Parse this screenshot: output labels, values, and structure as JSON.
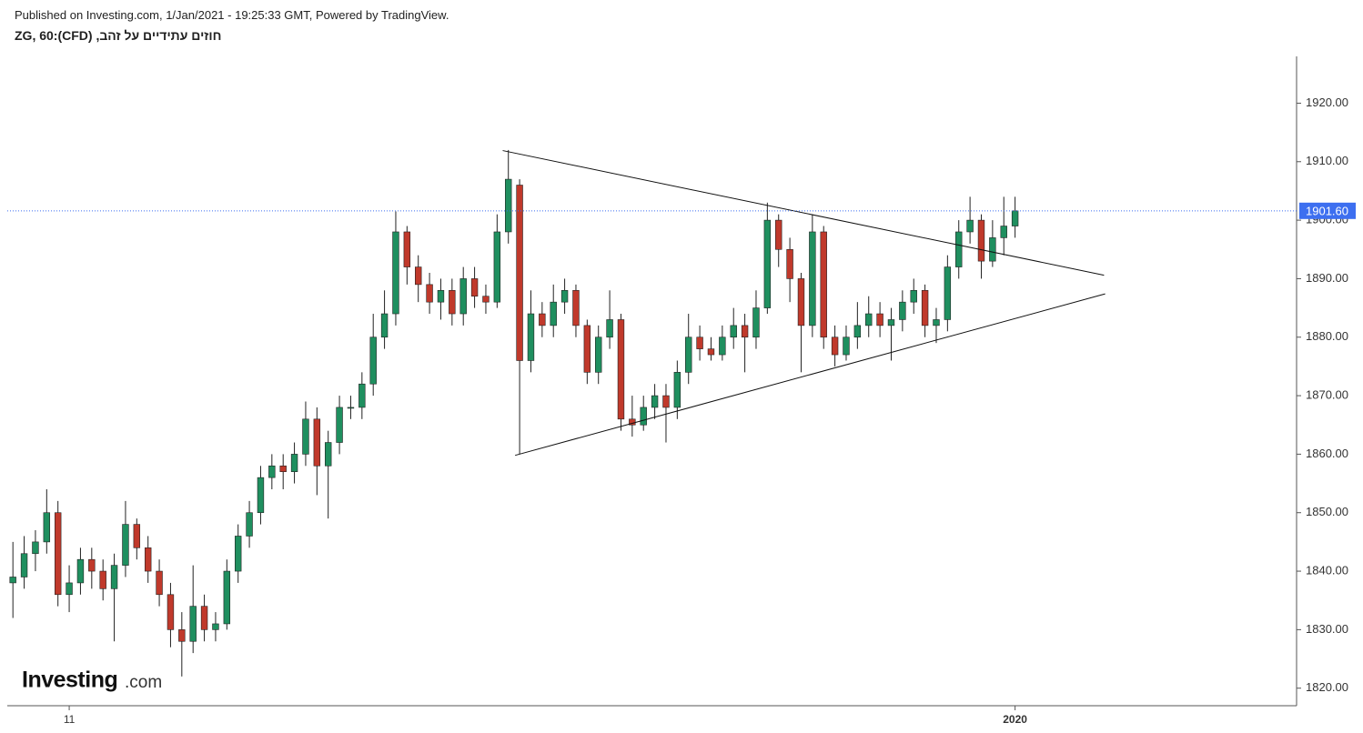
{
  "header": {
    "published": "Published on Investing.com, 1/Jan/2021 - 19:25:33 GMT, Powered by TradingView.",
    "symbol": "חוזים עתידיים על זהב, (CFD):ZG, 60"
  },
  "logo": {
    "brand": "Investing",
    "suffix": ".com"
  },
  "chart_data": {
    "type": "candlestick",
    "up_color": "#1f8f5f",
    "down_color": "#c0392b",
    "open": [
      1838,
      1839,
      1843,
      1845,
      1850,
      1836,
      1838,
      1842,
      1840,
      1837,
      1841,
      1848,
      1844,
      1840,
      1836,
      1830,
      1828,
      1834,
      1830,
      1831,
      1840,
      1846,
      1850,
      1856,
      1858,
      1857,
      1860,
      1866,
      1858,
      1862,
      1868,
      1868,
      1872,
      1880,
      1884,
      1898,
      1892,
      1889,
      1886,
      1888,
      1884,
      1890,
      1887,
      1886,
      1898,
      1906,
      1876,
      1884,
      1882,
      1886,
      1888,
      1882,
      1874,
      1880,
      1883,
      1866,
      1865,
      1868,
      1870,
      1868,
      1874,
      1880,
      1878,
      1877,
      1880,
      1882,
      1880,
      1885,
      1900,
      1895,
      1890,
      1882,
      1898,
      1880,
      1877,
      1880,
      1882,
      1884,
      1882,
      1883,
      1886,
      1888,
      1882,
      1883,
      1892,
      1898,
      1900,
      1893,
      1897,
      1899
    ],
    "high": [
      1845,
      1846,
      1847,
      1854,
      1852,
      1841,
      1844,
      1844,
      1842,
      1843,
      1852,
      1849,
      1846,
      1842,
      1838,
      1833,
      1841,
      1836,
      1833,
      1842,
      1848,
      1852,
      1858,
      1860,
      1860,
      1862,
      1869,
      1868,
      1864,
      1870,
      1870,
      1874,
      1884,
      1888,
      1901.5,
      1899,
      1894,
      1891,
      1890,
      1890,
      1892,
      1892,
      1889,
      1901,
      1912,
      1907,
      1888,
      1886,
      1889,
      1890,
      1889,
      1883,
      1882,
      1888,
      1884,
      1870,
      1870,
      1872,
      1872,
      1876,
      1884,
      1882,
      1880,
      1882,
      1885,
      1884,
      1888,
      1903,
      1901,
      1897,
      1891,
      1901,
      1899,
      1882,
      1882,
      1886,
      1887,
      1886,
      1885,
      1888,
      1890,
      1889,
      1885,
      1894,
      1900,
      1904,
      1901,
      1900,
      1904,
      1904
    ],
    "low": [
      1832,
      1837,
      1840,
      1843,
      1834,
      1833,
      1836,
      1837,
      1835,
      1828,
      1839,
      1842,
      1838,
      1834,
      1827,
      1822,
      1826,
      1828,
      1828,
      1830,
      1838,
      1844,
      1848,
      1854,
      1854,
      1855,
      1858,
      1853,
      1849,
      1860,
      1866,
      1866,
      1870,
      1878,
      1882,
      1889,
      1886,
      1884,
      1883,
      1882,
      1882,
      1885,
      1884,
      1885,
      1896,
      1860,
      1874,
      1880,
      1880,
      1884,
      1880,
      1872,
      1872,
      1878,
      1864,
      1863,
      1864,
      1866,
      1862,
      1866,
      1872,
      1876,
      1876,
      1876,
      1878,
      1874,
      1878,
      1884,
      1892,
      1886,
      1874,
      1880,
      1878,
      1875,
      1876,
      1878,
      1880,
      1880,
      1876,
      1881,
      1884,
      1880,
      1879,
      1881,
      1890,
      1896,
      1890,
      1892,
      1894,
      1897
    ],
    "close": [
      1839,
      1843,
      1845,
      1850,
      1836,
      1838,
      1842,
      1840,
      1837,
      1841,
      1848,
      1844,
      1840,
      1836,
      1830,
      1828,
      1834,
      1830,
      1831,
      1840,
      1846,
      1850,
      1856,
      1858,
      1857,
      1860,
      1866,
      1858,
      1862,
      1868,
      1868,
      1872,
      1880,
      1884,
      1898,
      1892,
      1889,
      1886,
      1888,
      1884,
      1890,
      1887,
      1886,
      1898,
      1907,
      1876,
      1884,
      1882,
      1886,
      1888,
      1882,
      1874,
      1880,
      1883,
      1866,
      1865,
      1868,
      1870,
      1868,
      1874,
      1880,
      1878,
      1877,
      1880,
      1882,
      1880,
      1885,
      1900,
      1895,
      1890,
      1882,
      1898,
      1880,
      1877,
      1880,
      1882,
      1884,
      1882,
      1883,
      1886,
      1888,
      1882,
      1883,
      1892,
      1898,
      1900,
      1893,
      1897,
      1899,
      1901.6
    ],
    "xlim": [
      -0.5,
      114
    ],
    "xticks": [
      {
        "value": 5,
        "label": "11"
      },
      {
        "value": 89,
        "label": "2020"
      }
    ],
    "ylim": [
      1817,
      1928
    ],
    "yticks": [
      {
        "value": 1820,
        "label": "1820.00"
      },
      {
        "value": 1830,
        "label": "1830.00"
      },
      {
        "value": 1840,
        "label": "1840.00"
      },
      {
        "value": 1850,
        "label": "1850.00"
      },
      {
        "value": 1860,
        "label": "1860.00"
      },
      {
        "value": 1870,
        "label": "1870.00"
      },
      {
        "value": 1880,
        "label": "1880.00"
      },
      {
        "value": 1890,
        "label": "1890.00"
      },
      {
        "value": 1900,
        "label": "1900.00"
      },
      {
        "value": 1910,
        "label": "1910.00"
      },
      {
        "value": 1920,
        "label": "1920.00"
      }
    ],
    "trendlines": [
      {
        "x": [
          43.5,
          96.9
        ],
        "y": [
          1911.9,
          1890.6
        ]
      },
      {
        "x": [
          44.6,
          97
        ],
        "y": [
          1859.8,
          1887.4
        ]
      }
    ],
    "last_price": {
      "value": 1901.6,
      "label": "1901.60"
    },
    "last_price_color": "#3d6ff0"
  }
}
